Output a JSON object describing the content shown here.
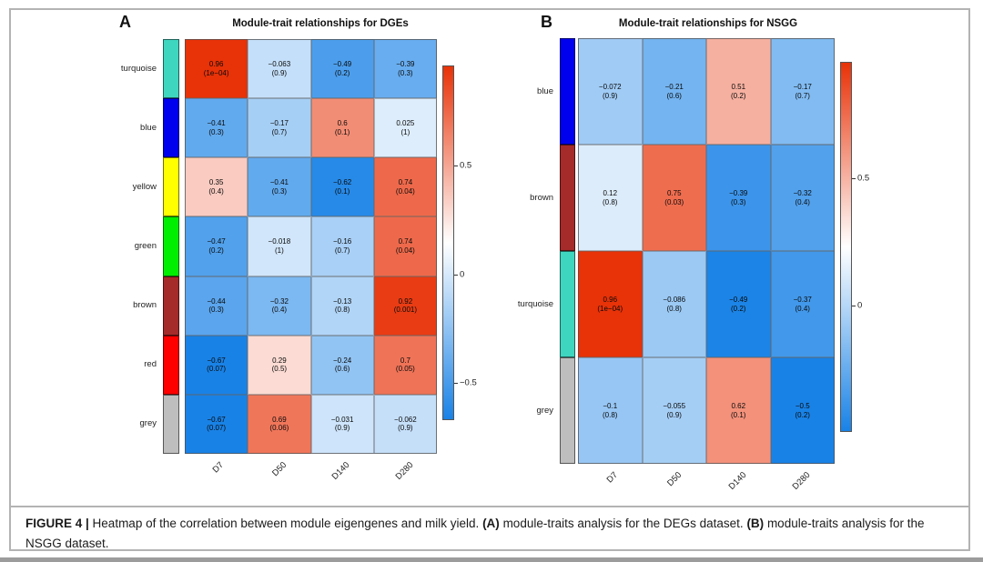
{
  "caption": {
    "label": "FIGURE 4 |",
    "before_a": " Heatmap of the correlation between module eigengenes and milk yield. ",
    "a_label": "(A)",
    "a_text": " module-traits analysis for the DEGs dataset. ",
    "b_label": "(B)",
    "b_text": " module-traits analysis for the NSGG dataset."
  },
  "colors": {
    "heat_max": "#E83208",
    "heat_mid": "#FFFFFF",
    "heat_min": "#1982E6",
    "module_colors": {
      "turquoise": "#3FD6C0",
      "blue": "#0000EE",
      "yellow": "#FFFF00",
      "green": "#00EE00",
      "brown": "#A52A2A",
      "red": "#FF0000",
      "grey": "#BEBEBE"
    }
  },
  "chart_data": [
    {
      "type": "heatmap",
      "panel_label": "A",
      "title": "Module-trait relationships for DGEs",
      "x_categories": [
        "D7",
        "D50",
        "D140",
        "D280"
      ],
      "y_categories": [
        "turquoise",
        "blue",
        "yellow",
        "green",
        "brown",
        "red",
        "grey"
      ],
      "zlim": [
        -0.67,
        0.96
      ],
      "colorbar_ticks": [
        0.5,
        0,
        -0.5
      ],
      "cells": [
        [
          {
            "value": 0.96,
            "p": "1e-04"
          },
          {
            "value": -0.063,
            "p": "0.9"
          },
          {
            "value": -0.49,
            "p": "0.2"
          },
          {
            "value": -0.39,
            "p": "0.3"
          }
        ],
        [
          {
            "value": -0.41,
            "p": "0.3"
          },
          {
            "value": -0.17,
            "p": "0.7"
          },
          {
            "value": 0.6,
            "p": "0.1"
          },
          {
            "value": 0.025,
            "p": "1"
          }
        ],
        [
          {
            "value": 0.35,
            "p": "0.4"
          },
          {
            "value": -0.41,
            "p": "0.3"
          },
          {
            "value": -0.62,
            "p": "0.1"
          },
          {
            "value": 0.74,
            "p": "0.04"
          }
        ],
        [
          {
            "value": -0.47,
            "p": "0.2"
          },
          {
            "value": -0.018,
            "p": "1"
          },
          {
            "value": -0.16,
            "p": "0.7"
          },
          {
            "value": 0.74,
            "p": "0.04"
          }
        ],
        [
          {
            "value": -0.44,
            "p": "0.3"
          },
          {
            "value": -0.32,
            "p": "0.4"
          },
          {
            "value": -0.13,
            "p": "0.8"
          },
          {
            "value": 0.92,
            "p": "0.001"
          }
        ],
        [
          {
            "value": -0.67,
            "p": "0.07"
          },
          {
            "value": 0.29,
            "p": "0.5"
          },
          {
            "value": -0.24,
            "p": "0.6"
          },
          {
            "value": 0.7,
            "p": "0.05"
          }
        ],
        [
          {
            "value": -0.67,
            "p": "0.07"
          },
          {
            "value": 0.69,
            "p": "0.06"
          },
          {
            "value": -0.031,
            "p": "0.9"
          },
          {
            "value": -0.062,
            "p": "0.9"
          }
        ]
      ]
    },
    {
      "type": "heatmap",
      "panel_label": "B",
      "title": "Module-trait relationships for NSGG",
      "x_categories": [
        "D7",
        "D50",
        "D140",
        "D280"
      ],
      "y_categories": [
        "blue",
        "brown",
        "turquoise",
        "grey"
      ],
      "zlim": [
        -0.5,
        0.96
      ],
      "colorbar_ticks": [
        0.5,
        0
      ],
      "cells": [
        [
          {
            "value": -0.072,
            "p": "0.9"
          },
          {
            "value": -0.21,
            "p": "0.6"
          },
          {
            "value": 0.51,
            "p": "0.2"
          },
          {
            "value": -0.17,
            "p": "0.7"
          }
        ],
        [
          {
            "value": 0.12,
            "p": "0.8"
          },
          {
            "value": 0.75,
            "p": "0.03"
          },
          {
            "value": -0.39,
            "p": "0.3"
          },
          {
            "value": -0.32,
            "p": "0.4"
          }
        ],
        [
          {
            "value": 0.96,
            "p": "1e-04"
          },
          {
            "value": -0.086,
            "p": "0.8"
          },
          {
            "value": -0.49,
            "p": "0.2"
          },
          {
            "value": -0.37,
            "p": "0.4"
          }
        ],
        [
          {
            "value": -0.1,
            "p": "0.8"
          },
          {
            "value": -0.055,
            "p": "0.9"
          },
          {
            "value": 0.62,
            "p": "0.1"
          },
          {
            "value": -0.5,
            "p": "0.2"
          }
        ]
      ]
    }
  ]
}
